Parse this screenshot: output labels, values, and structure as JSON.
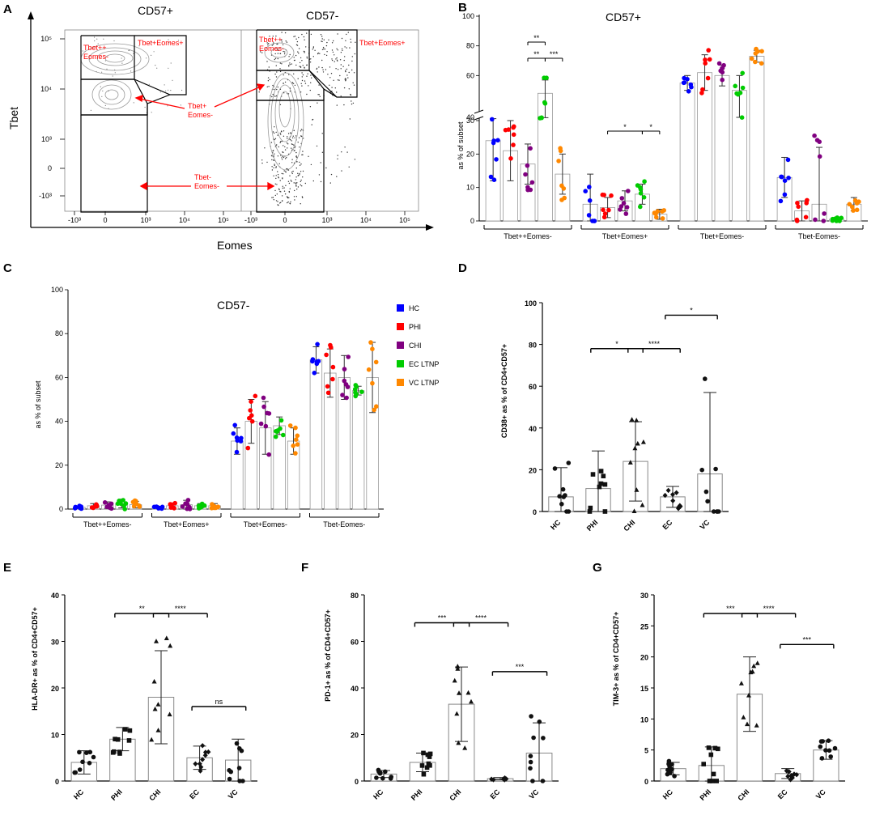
{
  "series_colors": {
    "HC": "#0000ff",
    "PHI": "#ff0000",
    "CHI": "#800080",
    "EC LTNP": "#00cc00",
    "VC LTNP": "#ff8800"
  },
  "panelA": {
    "label": "A",
    "left_title": "CD57+",
    "right_title": "CD57-",
    "ylabel": "Tbet",
    "xlabel": "Eomes",
    "yticks": [
      "10⁵",
      "10⁴",
      "10³",
      "0",
      "-10³"
    ],
    "xticks": [
      "-10³",
      "0",
      "10³",
      "10⁴",
      "10⁵"
    ],
    "gates": {
      "tpp": [
        "Tbet++",
        "Eomes-"
      ],
      "tpe": "Tbet+Eomes+",
      "tp": [
        "Tbet+",
        "Eomes-"
      ],
      "tm": [
        "Tbet-",
        "Eomes-"
      ]
    }
  },
  "panelB": {
    "label": "B",
    "chart_data": {
      "type": "bar",
      "title": "CD57+",
      "ylabel": "as % of subset",
      "ylim": [
        0,
        100
      ],
      "axis_break": [
        30,
        40
      ],
      "yticks": [
        "0",
        "10",
        "20",
        "30",
        "40",
        "60",
        "80",
        "100"
      ],
      "groups": [
        "Tbet++Eomes-",
        "Tbet+Eomes+",
        "Tbet+Eomes-",
        "Tbet-Eomes-"
      ],
      "series": [
        {
          "name": "HC",
          "values": [
            24,
            5,
            55,
            13
          ],
          "errors": [
            12,
            9,
            5,
            6
          ]
        },
        {
          "name": "PHI",
          "values": [
            21,
            4,
            62,
            3
          ],
          "errors": [
            9,
            3,
            12,
            3
          ]
        },
        {
          "name": "CHI",
          "values": [
            17,
            6,
            60,
            5
          ],
          "errors": [
            6,
            3,
            7,
            17
          ]
        },
        {
          "name": "EC LTNP",
          "values": [
            48,
            8,
            50,
            0.5
          ],
          "errors": [
            9,
            3,
            10,
            0.5
          ]
        },
        {
          "name": "VC LTNP",
          "values": [
            14,
            2,
            73,
            5
          ],
          "errors": [
            6,
            1.5,
            4,
            2
          ]
        }
      ],
      "significance": [
        {
          "label": "**",
          "group": 0,
          "from": 2,
          "to": 3,
          "level": 0
        },
        {
          "label": "**",
          "group": 0,
          "from": 2,
          "to": 3,
          "level": 1
        },
        {
          "label": "***",
          "group": 0,
          "from": 3,
          "to": 4,
          "level": 1
        },
        {
          "label": "*",
          "group": 1,
          "from": 1,
          "to": 3,
          "level": 0
        },
        {
          "label": "*",
          "group": 1,
          "from": 3,
          "to": 4,
          "level": 0
        }
      ]
    }
  },
  "panelC": {
    "label": "C",
    "chart_data": {
      "type": "bar",
      "title": "CD57-",
      "ylabel": "as % of subset",
      "ylim": [
        0,
        100
      ],
      "yticks": [
        "0",
        "20",
        "40",
        "60",
        "80",
        "100"
      ],
      "groups": [
        "Tbet++Eomes-",
        "Tbet+Eomes+",
        "Tbet+Eomes-",
        "Tbet-Eomes-"
      ],
      "legend": [
        "HC",
        "PHI",
        "CHI",
        "EC LTNP",
        "VC LTNP"
      ],
      "series": [
        {
          "name": "HC",
          "values": [
            0.8,
            0.8,
            31,
            68
          ],
          "errors": [
            0.5,
            0.5,
            6,
            6
          ]
        },
        {
          "name": "PHI",
          "values": [
            1.5,
            1.5,
            40,
            62
          ],
          "errors": [
            1,
            1,
            10,
            11
          ]
        },
        {
          "name": "CHI",
          "values": [
            1.8,
            2,
            37,
            60
          ],
          "errors": [
            1.5,
            2,
            12,
            10
          ]
        },
        {
          "name": "EC LTNP",
          "values": [
            2.5,
            1.5,
            38,
            54
          ],
          "errors": [
            2,
            1,
            4,
            2
          ]
        },
        {
          "name": "VC LTNP",
          "values": [
            2,
            1.5,
            31,
            60
          ],
          "errors": [
            1.5,
            1,
            6,
            16
          ]
        }
      ]
    }
  },
  "panelD": {
    "label": "D",
    "chart_data": {
      "type": "bar",
      "ylabel": "CD38+ as % of CD4+CD57+",
      "ylim": [
        0,
        100
      ],
      "yticks": [
        "0",
        "20",
        "40",
        "60",
        "80",
        "100"
      ],
      "categories": [
        "HC",
        "PHI",
        "CHI",
        "EC",
        "VC"
      ],
      "values": [
        7,
        11,
        24,
        7,
        18
      ],
      "errors": [
        14,
        18,
        19,
        5,
        39
      ],
      "significance": [
        {
          "label": "*",
          "from": 1,
          "to": 2,
          "y": 78
        },
        {
          "label": "****",
          "from": 2,
          "to": 3,
          "y": 78
        },
        {
          "label": "*",
          "from": 3,
          "to": 4,
          "y": 94
        }
      ]
    }
  },
  "panelE": {
    "label": "E",
    "chart_data": {
      "type": "bar",
      "ylabel": "HLA-DR+ as % of CD4+CD57+",
      "ylim": [
        0,
        40
      ],
      "yticks": [
        "0",
        "10",
        "20",
        "30",
        "40"
      ],
      "categories": [
        "HC",
        "PHI",
        "CHI",
        "EC",
        "VC"
      ],
      "values": [
        4,
        9,
        18,
        5,
        4.5
      ],
      "errors": [
        2.5,
        2.5,
        10,
        2.5,
        4.5
      ],
      "significance": [
        {
          "label": "**",
          "from": 1,
          "to": 2,
          "y": 36
        },
        {
          "label": "****",
          "from": 2,
          "to": 3,
          "y": 36
        },
        {
          "label": "ns",
          "from": 3,
          "to": 4,
          "y": 16
        }
      ]
    }
  },
  "panelF": {
    "label": "F",
    "chart_data": {
      "type": "bar",
      "ylabel": "PD-1+ as % of CD4+CD57+",
      "ylim": [
        0,
        80
      ],
      "yticks": [
        "0",
        "20",
        "40",
        "60",
        "80"
      ],
      "categories": [
        "HC",
        "PHI",
        "CHI",
        "EC",
        "VC"
      ],
      "values": [
        3,
        8,
        33,
        1,
        12
      ],
      "errors": [
        1.5,
        4,
        16,
        0.5,
        13
      ],
      "significance": [
        {
          "label": "***",
          "from": 1,
          "to": 2,
          "y": 68
        },
        {
          "label": "****",
          "from": 2,
          "to": 3,
          "y": 68
        },
        {
          "label": "***",
          "from": 3,
          "to": 4,
          "y": 47
        }
      ]
    }
  },
  "panelG": {
    "label": "G",
    "chart_data": {
      "type": "bar",
      "ylabel": "TIM-3+ as % of CD4+CD57+",
      "ylim": [
        0,
        30
      ],
      "yticks": [
        "0",
        "5",
        "10",
        "15",
        "20",
        "25",
        "30"
      ],
      "categories": [
        "HC",
        "PHI",
        "CHI",
        "EC",
        "VC"
      ],
      "values": [
        2,
        2.5,
        14,
        1.2,
        5
      ],
      "errors": [
        1,
        3,
        6,
        0.8,
        1.5
      ],
      "significance": [
        {
          "label": "***",
          "from": 1,
          "to": 2,
          "y": 27
        },
        {
          "label": "****",
          "from": 2,
          "to": 3,
          "y": 27
        },
        {
          "label": "***",
          "from": 3,
          "to": 4,
          "y": 22
        }
      ]
    }
  }
}
